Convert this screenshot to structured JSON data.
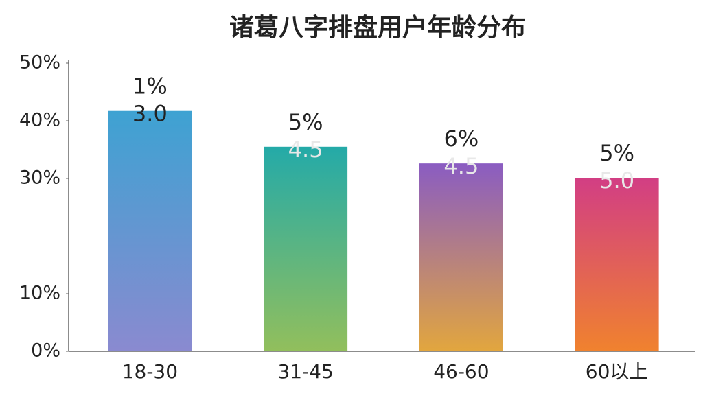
{
  "chart_data": {
    "type": "bar",
    "title": "诸葛八字排盘用户年龄分布",
    "categories": [
      "18-30",
      "31-45",
      "46-60",
      "60以上"
    ],
    "values": [
      41.7,
      35.5,
      32.6,
      30.1
    ],
    "labels_top": [
      "1%",
      "5%",
      "6%",
      "5%"
    ],
    "labels_bottom": [
      "3.0",
      "4.5",
      "4.5",
      "5.0"
    ],
    "colors": [
      [
        "#3ea2d2",
        "#8a8ad0"
      ],
      [
        "#24aaa8",
        "#92bf5c"
      ],
      [
        "#8a5cc2",
        "#e2a63e"
      ],
      [
        "#d23e84",
        "#f0822e"
      ]
    ],
    "ylim": [
      0,
      50
    ],
    "yticks": [
      {
        "value": 0,
        "label": "0%"
      },
      {
        "value": 10,
        "label": "10%"
      },
      {
        "value": 30,
        "label": "30%"
      },
      {
        "value": 40,
        "label": "40%"
      },
      {
        "value": 50,
        "label": "50%"
      }
    ]
  }
}
